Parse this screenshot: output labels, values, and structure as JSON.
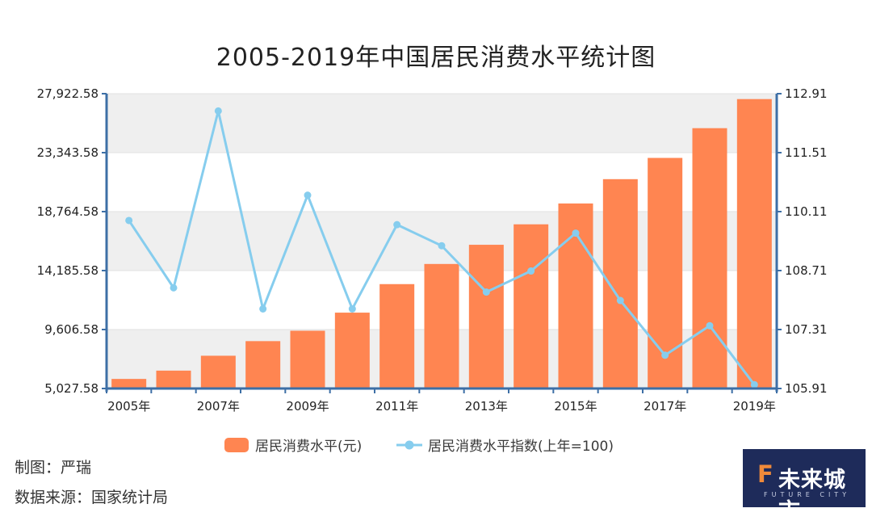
{
  "title": "2005-2019年中国居民消费水平统计图",
  "credits": {
    "author": "制图：严瑞",
    "source": "数据来源：国家统计局"
  },
  "logo": {
    "mark": "F",
    "text": "未来城市",
    "sub": "FUTURE CITY"
  },
  "colors": {
    "bar": "#ff8551",
    "line": "#86cdee",
    "plot_bg": "#efefef",
    "axis": "#3d6fa6",
    "logo_bg": "#1e2b5a"
  },
  "chart_data": {
    "type": "bar",
    "categories": [
      "2005年",
      "2006年",
      "2007年",
      "2008年",
      "2009年",
      "2010年",
      "2011年",
      "2012年",
      "2013年",
      "2014年",
      "2015年",
      "2016年",
      "2017年",
      "2018年",
      "2019年"
    ],
    "x_tick_labels": [
      "2005年",
      "2007年",
      "2009年",
      "2011年",
      "2013年",
      "2015年",
      "2017年",
      "2019年"
    ],
    "series": [
      {
        "name": "居民消费水平(元)",
        "type": "bar",
        "axis": "left",
        "values": [
          5771,
          6416,
          7572,
          8707,
          9514,
          10919,
          13134,
          14699,
          16190,
          17778,
          19397,
          21285,
          22935,
          25245,
          27504
        ]
      },
      {
        "name": "居民消费水平指数(上年=100)",
        "type": "line",
        "axis": "right",
        "values": [
          109.9,
          108.3,
          112.5,
          107.8,
          110.5,
          107.8,
          109.8,
          109.3,
          108.2,
          108.7,
          109.6,
          108.0,
          106.7,
          107.4,
          106.0
        ]
      }
    ],
    "y_left": {
      "ticks": [
        "27,922.58",
        "23,343.58",
        "18,764.58",
        "14,185.58",
        "9,606.58",
        "5,027.58"
      ],
      "ylim": [
        5027.58,
        27922.58
      ]
    },
    "y_right": {
      "ticks": [
        "112.91",
        "111.51",
        "110.11",
        "108.71",
        "107.31",
        "105.91"
      ],
      "ylim": [
        105.91,
        112.91
      ]
    },
    "grid": "alternating horizontal bands",
    "legend_position": "bottom-center"
  }
}
